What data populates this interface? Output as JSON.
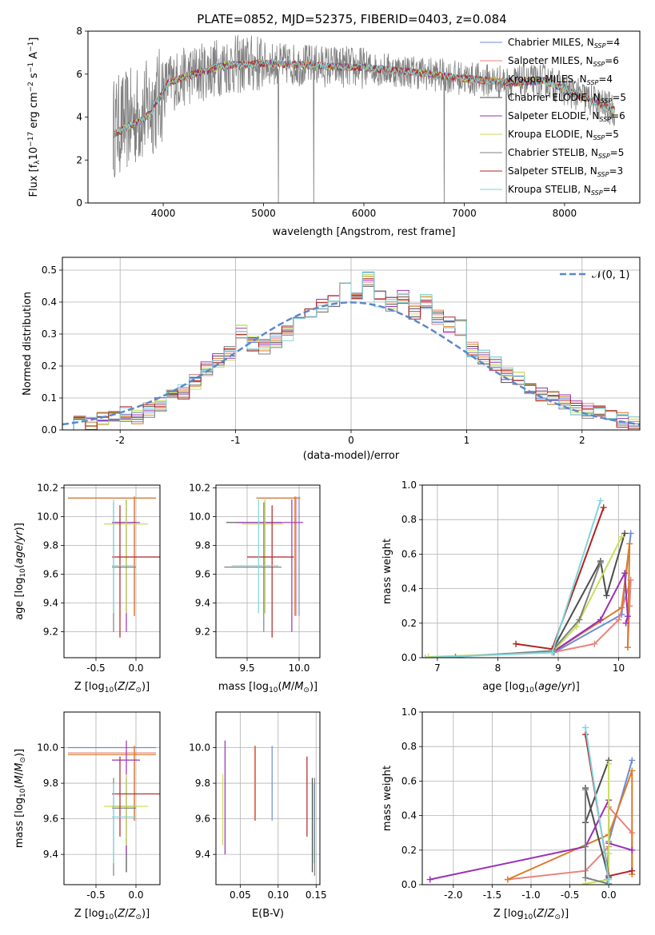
{
  "figure_title": "PLATE=0852, MJD=52375, FIBERID=0403, z=0.084",
  "models": [
    {
      "name": "Chabrier MILES",
      "nssp": 4,
      "color": "#6a8dd6",
      "age": 10.13,
      "age_lo": 9.31,
      "age_hi": 10.14,
      "Z": -0.02,
      "Z_lo": -0.85,
      "Z_hi": 0.25,
      "mass": 10.0,
      "mass_lo": 9.59,
      "mass_hi": 10.01,
      "ebv": 0.092,
      "ebv_lo": 0.0,
      "ebv_hi": 0.0,
      "sfh_age": [
        8.93,
        10.05,
        10.2
      ],
      "sfh_w": [
        0.03,
        0.25,
        0.72
      ]
    },
    {
      "name": "Salpeter MILES",
      "nssp": 6,
      "color": "#e8837a",
      "age": 10.13,
      "age_lo": 9.31,
      "age_hi": 10.14,
      "Z": -0.02,
      "Z_lo": -0.85,
      "Z_hi": 0.25,
      "mass": 9.97,
      "mass_lo": 9.59,
      "mass_hi": 10.01,
      "ebv": 0.069,
      "ebv_lo": 0.0,
      "ebv_hi": 0.0,
      "sfh_age": [
        8.9,
        9.6,
        10.0,
        10.2,
        10.18,
        10.15
      ],
      "sfh_w": [
        0.03,
        0.08,
        0.22,
        0.45,
        0.3,
        0.06
      ]
    },
    {
      "name": "Kroupa MILES",
      "nssp": 4,
      "color": "#d97c2b",
      "age": 10.13,
      "age_lo": 9.31,
      "age_hi": 10.14,
      "Z": -0.02,
      "Z_lo": -0.85,
      "Z_hi": 0.25,
      "mass": 9.96,
      "mass_lo": 9.59,
      "mass_hi": 10.01,
      "ebv": 0.07,
      "ebv_lo": 0.0,
      "ebv_hi": 0.0,
      "sfh_age": [
        8.9,
        10.05,
        10.18,
        10.15
      ],
      "sfh_w": [
        0.03,
        0.29,
        0.66,
        0.06
      ]
    },
    {
      "name": "Chabrier ELODIE",
      "nssp": 5,
      "color": "#4d4d4d",
      "age": 9.96,
      "age_lo": 9.33,
      "age_hi": 10.12,
      "Z": -0.12,
      "Z_lo": -0.3,
      "Z_hi": 0.0,
      "mass": 9.67,
      "mass_lo": 9.3,
      "mass_hi": 9.83,
      "ebv": 0.145,
      "ebv_lo": 0.0,
      "ebv_hi": 0.0,
      "sfh_age": [
        8.9,
        9.7,
        9.8,
        10.1
      ],
      "sfh_w": [
        0.04,
        0.56,
        0.36,
        0.72
      ]
    },
    {
      "name": "Salpeter ELODIE",
      "nssp": 6,
      "color": "#9b30b6",
      "age": 9.96,
      "age_lo": 9.2,
      "age_hi": 10.12,
      "Z": -0.12,
      "Z_lo": -0.3,
      "Z_hi": 0.05,
      "mass": 9.93,
      "mass_lo": 9.4,
      "mass_hi": 10.04,
      "ebv": 0.03,
      "ebv_lo": 0.0,
      "ebv_hi": 0.0,
      "sfh_age": [
        8.9,
        9.7,
        10.1,
        10.15,
        10.12
      ],
      "sfh_w": [
        0.03,
        0.22,
        0.49,
        0.24,
        0.2
      ]
    },
    {
      "name": "Kroupa ELODIE",
      "nssp": 5,
      "color": "#c6e05a",
      "age": 9.95,
      "age_lo": 9.33,
      "age_hi": 10.12,
      "Z": -0.12,
      "Z_lo": -0.4,
      "Z_hi": 0.15,
      "mass": 9.67,
      "mass_lo": 9.45,
      "mass_hi": 9.85,
      "ebv": 0.027,
      "ebv_lo": 0.0,
      "ebv_hi": 0.0,
      "sfh_age": [
        6.85,
        8.9,
        9.3,
        10.05
      ],
      "sfh_w": [
        0.005,
        0.03,
        0.18,
        0.7
      ]
    },
    {
      "name": "Chabrier STELIB",
      "nssp": 5,
      "color": "#808080",
      "age": 9.65,
      "age_lo": 9.2,
      "age_hi": 10.1,
      "Z": -0.28,
      "Z_lo": -0.3,
      "Z_hi": 0.0,
      "mass": 9.66,
      "mass_lo": 9.28,
      "mass_hi": 9.83,
      "ebv": 0.148,
      "ebv_lo": 0.0,
      "ebv_hi": 0.0,
      "sfh_age": [
        7.3,
        8.9,
        9.35,
        9.7
      ],
      "sfh_w": [
        0.005,
        0.04,
        0.22,
        0.55
      ]
    },
    {
      "name": "Salpeter STELIB",
      "nssp": 3,
      "color": "#b22222",
      "age": 9.72,
      "age_lo": 9.16,
      "age_hi": 10.08,
      "Z": -0.2,
      "Z_lo": -0.3,
      "Z_hi": 0.3,
      "mass": 9.74,
      "mass_lo": 9.5,
      "mass_hi": 9.95,
      "ebv": 0.138,
      "ebv_lo": 0.0,
      "ebv_hi": 0.0,
      "sfh_age": [
        8.3,
        8.9,
        9.75
      ],
      "sfh_w": [
        0.08,
        0.05,
        0.87
      ]
    },
    {
      "name": "Kroupa STELIB",
      "nssp": 4,
      "color": "#7fd6dd",
      "age": 9.66,
      "age_lo": 9.33,
      "age_hi": 10.12,
      "Z": -0.28,
      "Z_lo": -0.3,
      "Z_hi": 0.0,
      "mass": 9.61,
      "mass_lo": 9.35,
      "mass_hi": 9.8,
      "ebv": 0.147,
      "ebv_lo": 0.0,
      "ebv_hi": 0.0,
      "sfh_age": [
        6.8,
        8.9,
        9.7
      ],
      "sfh_w": [
        0.0,
        0.03,
        0.91
      ]
    }
  ],
  "chart_data": [
    {
      "type": "line",
      "title": "PLATE=0852, MJD=52375, FIBERID=0403, z=0.084",
      "xlabel": "wavelength [Angstrom, rest frame]",
      "ylabel": "Flux [f_λ 10^-17 erg cm^-2 s^-1 A^-1]",
      "xlim": [
        3250,
        8750
      ],
      "ylim": [
        0,
        8
      ],
      "xticks": [
        4000,
        5000,
        6000,
        7000,
        8000
      ],
      "yticks": [
        0,
        2,
        4,
        6,
        8
      ],
      "legend": "top-right",
      "spectrum_continuum": [
        [
          3500,
          3.5
        ],
        [
          3800,
          4.2
        ],
        [
          3950,
          4.8
        ],
        [
          4050,
          5.6
        ],
        [
          4300,
          6.0
        ],
        [
          4600,
          6.4
        ],
        [
          5000,
          6.5
        ],
        [
          5500,
          6.4
        ],
        [
          6000,
          6.3
        ],
        [
          6500,
          6.1
        ],
        [
          7000,
          5.8
        ],
        [
          7500,
          5.6
        ],
        [
          7800,
          5.7
        ],
        [
          8200,
          4.9
        ],
        [
          8500,
          4.3
        ]
      ]
    },
    {
      "type": "bar",
      "xlabel": "(data-model)/error",
      "ylabel": "Normed distribution",
      "xlim": [
        -2.5,
        2.5
      ],
      "ylim": [
        0,
        0.54
      ],
      "xticks": [
        -2,
        -1,
        0,
        1,
        2
      ],
      "yticks": [
        0.0,
        0.1,
        0.2,
        0.3,
        0.4,
        0.5
      ],
      "legend": "top-right",
      "reference_label": "𝒩(0, 1)",
      "reference_color": "#5b87c9",
      "bin_width": 0.1,
      "histogram": [
        0.02,
        0.03,
        0.02,
        0.04,
        0.04,
        0.05,
        0.04,
        0.06,
        0.08,
        0.11,
        0.12,
        0.15,
        0.19,
        0.22,
        0.24,
        0.31,
        0.27,
        0.26,
        0.28,
        0.3,
        0.34,
        0.36,
        0.39,
        0.4,
        0.48,
        0.43,
        0.47,
        0.41,
        0.39,
        0.42,
        0.37,
        0.4,
        0.35,
        0.33,
        0.32,
        0.25,
        0.23,
        0.21,
        0.17,
        0.16,
        0.12,
        0.11,
        0.1,
        0.09,
        0.07,
        0.06,
        0.06,
        0.04,
        0.03,
        0.02
      ]
    },
    {
      "type": "scatter",
      "xlabel": "Z [log10(Z/Z⊙)]",
      "ylabel": "age [log10(age/yr)]",
      "xlim": [
        -0.9,
        0.3
      ],
      "ylim": [
        9.02,
        10.22
      ],
      "xticks": [
        -0.5,
        0.0
      ],
      "yticks": [
        9.2,
        9.4,
        9.6,
        9.8,
        10.0,
        10.2
      ]
    },
    {
      "type": "scatter",
      "xlabel": "mass [log10(M/M⊙)]",
      "ylabel": "",
      "xlim": [
        9.2,
        10.2
      ],
      "ylim": [
        9.02,
        10.22
      ],
      "xticks": [
        9.5,
        10.0
      ],
      "yticks": [
        9.2,
        9.4,
        9.6,
        9.8,
        10.0,
        10.2
      ]
    },
    {
      "type": "line",
      "xlabel": "age [log10(age/yr)]",
      "ylabel": "mass weight",
      "xlim": [
        6.75,
        10.35
      ],
      "ylim": [
        0,
        1
      ],
      "xticks": [
        7,
        8,
        9,
        10
      ],
      "yticks": [
        0.0,
        0.2,
        0.4,
        0.6,
        0.8,
        1.0
      ]
    },
    {
      "type": "scatter",
      "xlabel": "Z [log10(Z/Z⊙)]",
      "ylabel": "mass [log10(M/M⊙)]",
      "xlim": [
        -0.9,
        0.3
      ],
      "ylim": [
        9.23,
        10.2
      ],
      "xticks": [
        -0.5,
        0.0
      ],
      "yticks": [
        9.4,
        9.6,
        9.8,
        10.0
      ]
    },
    {
      "type": "scatter",
      "xlabel": "E(B-V)",
      "ylabel": "",
      "xlim": [
        0.018,
        0.155
      ],
      "ylim": [
        9.23,
        10.2
      ],
      "xticks": [
        0.05,
        0.1,
        0.15
      ],
      "yticks": [
        9.4,
        9.6,
        9.8,
        10.0
      ]
    },
    {
      "type": "line",
      "xlabel": "Z [log10(Z/Z⊙)]",
      "ylabel": "mass weight",
      "xlim": [
        -2.4,
        0.4
      ],
      "ylim": [
        0,
        1
      ],
      "xticks": [
        -2.0,
        -1.5,
        -1.0,
        -0.5,
        0.0
      ],
      "yticks": [
        0.0,
        0.2,
        0.4,
        0.6,
        0.8,
        1.0
      ]
    }
  ]
}
